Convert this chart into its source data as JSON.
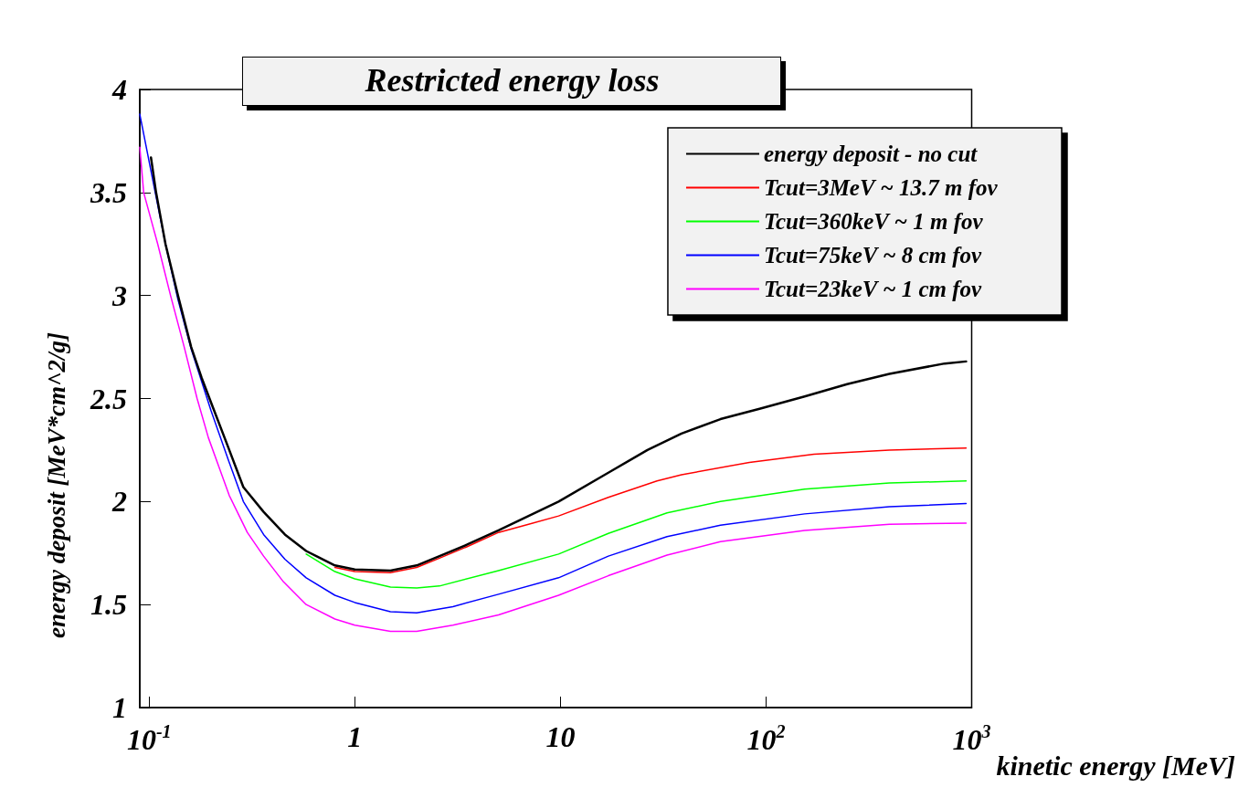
{
  "chart_data": {
    "type": "line",
    "title": "Restricted energy loss",
    "xlabel": "kinetic energy [MeV]",
    "ylabel": "energy deposit [MeV*cm^2/g]",
    "log": "x",
    "xlim": [
      0.09,
      1000
    ],
    "xticks": [
      {
        "value": 0.1,
        "label": "10$^{-1}$"
      },
      1,
      10,
      {
        "value": 100,
        "label": "10$^{2}$"
      },
      {
        "value": 1000,
        "label": "10$^{3}$"
      }
    ],
    "ylim": [
      1,
      4
    ],
    "yticks": [
      1,
      1.5,
      2,
      2.5,
      3,
      3.5,
      4
    ],
    "grid": false,
    "legend": "top right",
    "marker": "none",
    "line_style": "solid",
    "series": [
      {
        "name": "energy deposit - no cut",
        "color": "#000000",
        "x": [
          0.102,
          0.108,
          0.12,
          0.138,
          0.16,
          0.18,
          0.2,
          0.243,
          0.287,
          0.36,
          0.457,
          0.58,
          0.65,
          0.8,
          1.0,
          1.49,
          2.0,
          2.58,
          3.5,
          5.0,
          7,
          9.8,
          17.1,
          26.5,
          38.8,
          60,
          93,
          154,
          248,
          398,
          740,
          940
        ],
        "values": [
          3.67,
          3.5,
          3.25,
          3.0,
          2.75,
          2.6,
          2.48,
          2.26,
          2.07,
          1.95,
          1.84,
          1.76,
          1.735,
          1.69,
          1.67,
          1.665,
          1.69,
          1.735,
          1.79,
          1.86,
          1.93,
          2.0,
          2.14,
          2.25,
          2.33,
          2.4,
          2.45,
          2.51,
          2.57,
          2.62,
          2.67,
          2.68
        ]
      },
      {
        "name": "Tcut=3MeV ~ 13.7 m fov",
        "color": "#ff0000",
        "x": [
          0.8,
          1.0,
          1.49,
          2.0,
          2.58,
          3.5,
          5.0,
          7,
          9.8,
          17.1,
          29.5,
          38.8,
          83,
          171,
          398,
          940
        ],
        "values": [
          1.68,
          1.66,
          1.655,
          1.68,
          1.725,
          1.78,
          1.85,
          1.89,
          1.93,
          2.02,
          2.1,
          2.13,
          2.19,
          2.23,
          2.25,
          2.26
        ]
      },
      {
        "name": "Tcut=360keV ~ 1 m fov",
        "color": "#00ff00",
        "x": [
          0.58,
          0.8,
          1.0,
          1.49,
          2.0,
          2.58,
          5.0,
          9.8,
          17.1,
          33,
          60,
          154,
          398,
          940
        ],
        "values": [
          1.745,
          1.66,
          1.625,
          1.585,
          1.58,
          1.59,
          1.665,
          1.745,
          1.845,
          1.945,
          2.0,
          2.06,
          2.09,
          2.1
        ]
      },
      {
        "name": "Tcut=75keV ~ 8 cm fov",
        "color": "#0000ff",
        "x": [
          0.09,
          0.107,
          0.12,
          0.138,
          0.16,
          0.2,
          0.243,
          0.287,
          0.36,
          0.457,
          0.58,
          0.8,
          1.0,
          1.49,
          2.0,
          3,
          5.0,
          9.8,
          17.1,
          33,
          60,
          154,
          398,
          940
        ],
        "values": [
          3.88,
          3.5,
          3.25,
          2.98,
          2.74,
          2.44,
          2.2,
          2.0,
          1.84,
          1.72,
          1.63,
          1.545,
          1.51,
          1.465,
          1.46,
          1.49,
          1.55,
          1.63,
          1.735,
          1.83,
          1.885,
          1.94,
          1.975,
          1.99
        ]
      },
      {
        "name": "Tcut=23keV ~ 1 cm fov",
        "color": "#ff00ff",
        "x": [
          0.09,
          0.094,
          0.11,
          0.127,
          0.148,
          0.171,
          0.194,
          0.245,
          0.3,
          0.36,
          0.45,
          0.58,
          0.8,
          1.0,
          1.49,
          2.0,
          3,
          5.0,
          9.8,
          17.1,
          33,
          60,
          154,
          398,
          940
        ],
        "values": [
          3.72,
          3.5,
          3.25,
          3.0,
          2.75,
          2.5,
          2.31,
          2.03,
          1.85,
          1.735,
          1.61,
          1.5,
          1.43,
          1.4,
          1.37,
          1.37,
          1.4,
          1.45,
          1.545,
          1.64,
          1.74,
          1.805,
          1.86,
          1.89,
          1.895
        ]
      }
    ]
  }
}
